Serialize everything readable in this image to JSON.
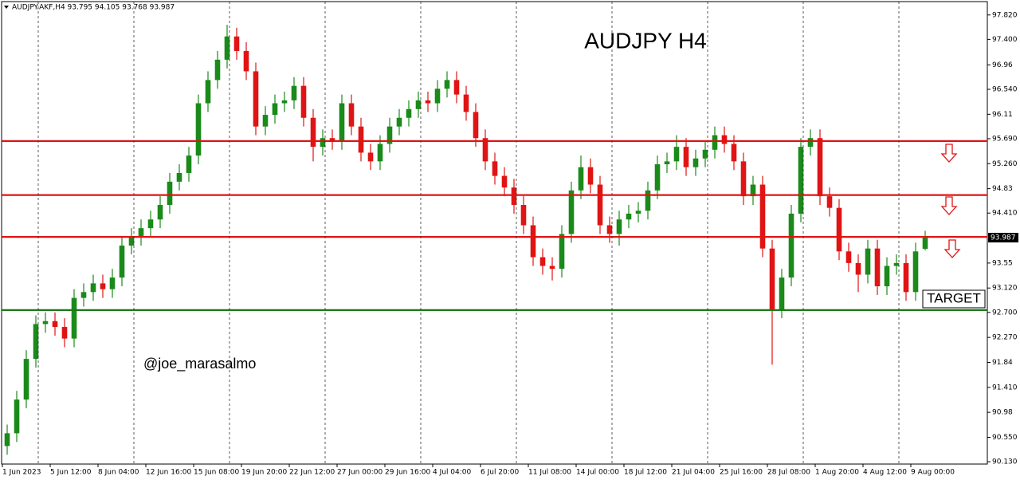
{
  "chart_data": {
    "type": "candlestick",
    "title": "AUDJPY H4",
    "header": "AUDJPY.AKF,H4  93.795 94.105 93.768 93.987",
    "watermark": "@joe_marasalmo",
    "annotation": "TARGET",
    "up_color": "#1a8a1a",
    "down_color": "#e01414",
    "grid": true,
    "ylim": [
      90.09,
      98.05
    ],
    "yticks": [
      {
        "value": 97.82,
        "label": "97.820"
      },
      {
        "value": 97.4,
        "label": "97.400"
      },
      96.96,
      {
        "value": 96.54,
        "label": "96.540"
      },
      96.11,
      {
        "value": 95.69,
        "label": "95.690"
      },
      {
        "value": 95.26,
        "label": "95.260"
      },
      94.83,
      {
        "value": 94.41,
        "label": "94.410"
      },
      93.55,
      {
        "value": 93.12,
        "label": "93.120"
      },
      {
        "value": 92.7,
        "label": "92.700"
      },
      {
        "value": 92.27,
        "label": "92.270"
      },
      91.84,
      {
        "value": 91.41,
        "label": "91.410"
      },
      90.98,
      {
        "value": 90.55,
        "label": "90.550"
      },
      {
        "value": 90.13,
        "label": "90.130"
      }
    ],
    "last_price": 93.987,
    "xlim": [
      0,
      103
    ],
    "xticks": [
      {
        "value": 0,
        "label": "1 Jun 2023"
      },
      {
        "value": 5,
        "label": "5 Jun 12:00"
      },
      {
        "value": 10,
        "label": "8 Jun 04:00"
      },
      {
        "value": 15,
        "label": "12 Jun 16:00"
      },
      {
        "value": 20,
        "label": "15 Jun 08:00"
      },
      {
        "value": 25,
        "label": "19 Jun 20:00"
      },
      {
        "value": 30,
        "label": "22 Jun 12:00"
      },
      {
        "value": 35,
        "label": "27 Jun 00:00"
      },
      {
        "value": 40,
        "label": "29 Jun 16:00"
      },
      {
        "value": 45,
        "label": "4 Jul 04:00"
      },
      {
        "value": 50,
        "label": "6 Jul 20:00"
      },
      {
        "value": 55,
        "label": "11 Jul 08:00"
      },
      {
        "value": 60,
        "label": "14 Jul 00:00"
      },
      {
        "value": 65,
        "label": "18 Jul 12:00"
      },
      {
        "value": 70,
        "label": "21 Jul 04:00"
      },
      {
        "value": 75,
        "label": "25 Jul 16:00"
      },
      {
        "value": 80,
        "label": "28 Jul 08:00"
      },
      {
        "value": 85,
        "label": "1 Aug 20:00"
      },
      {
        "value": 90,
        "label": "4 Aug 12:00"
      },
      {
        "value": 95,
        "label": "9 Aug 00:00"
      }
    ],
    "levels": [
      {
        "value": 95.65,
        "color": "#e01414"
      },
      {
        "value": 94.72,
        "color": "#e01414"
      },
      {
        "value": 94.0,
        "color": "#e01414"
      },
      {
        "value": 92.74,
        "color": "#1a7a1a"
      }
    ],
    "open": [
      90.4,
      90.62,
      91.2,
      91.9,
      92.5,
      92.55,
      92.45,
      92.25,
      92.95,
      93.05,
      93.2,
      93.1,
      93.3,
      93.85,
      94.0,
      94.15,
      94.3,
      94.55,
      94.95,
      95.1,
      95.4,
      96.3,
      96.7,
      97.05,
      97.45,
      97.2,
      96.85,
      95.9,
      96.1,
      96.3,
      96.35,
      96.6,
      96.05,
      95.55,
      95.7,
      95.65,
      96.3,
      95.9,
      95.45,
      95.3,
      95.6,
      95.9,
      96.05,
      96.2,
      96.35,
      96.3,
      96.55,
      96.7,
      96.45,
      96.15,
      95.7,
      95.3,
      95.05,
      94.85,
      94.55,
      94.2,
      93.65,
      93.5,
      93.45,
      94.05,
      94.8,
      95.2,
      94.9,
      94.2,
      94.05,
      94.3,
      94.4,
      94.45,
      94.8,
      95.25,
      95.3,
      95.55,
      95.2,
      95.35,
      95.5,
      95.75,
      95.6,
      95.3,
      94.7,
      94.9,
      93.8,
      92.75,
      93.3,
      94.4,
      95.55,
      95.7,
      94.7,
      94.5,
      93.75,
      93.55,
      93.35,
      93.8,
      93.15,
      93.5,
      93.55,
      93.05,
      93.795
    ],
    "high": [
      90.77,
      91.35,
      92.05,
      92.65,
      92.7,
      92.7,
      92.6,
      93.1,
      93.2,
      93.35,
      93.35,
      93.45,
      94.0,
      94.15,
      94.3,
      94.45,
      94.7,
      95.1,
      95.25,
      95.55,
      96.45,
      96.85,
      97.2,
      97.65,
      97.6,
      97.35,
      97.0,
      96.25,
      96.45,
      96.5,
      96.75,
      96.75,
      96.2,
      95.85,
      95.85,
      96.45,
      96.45,
      96.05,
      95.6,
      95.75,
      96.05,
      96.2,
      96.35,
      96.5,
      96.5,
      96.7,
      96.85,
      96.85,
      96.6,
      96.3,
      95.85,
      95.45,
      95.2,
      95.0,
      94.7,
      94.35,
      93.8,
      93.65,
      94.2,
      94.95,
      95.4,
      95.35,
      95.05,
      94.35,
      94.45,
      94.55,
      94.6,
      94.95,
      95.4,
      95.45,
      95.75,
      95.7,
      95.5,
      95.65,
      95.9,
      95.9,
      95.75,
      95.45,
      95.05,
      95.05,
      93.95,
      93.45,
      94.55,
      95.7,
      95.85,
      95.85,
      94.85,
      94.65,
      93.9,
      93.7,
      93.95,
      93.95,
      93.65,
      93.7,
      93.7,
      93.9,
      94.105
    ],
    "low": [
      90.25,
      90.47,
      91.05,
      91.75,
      92.35,
      92.3,
      92.1,
      92.1,
      92.8,
      92.9,
      92.95,
      92.95,
      93.15,
      93.7,
      93.85,
      94.0,
      94.15,
      94.4,
      94.8,
      94.95,
      95.25,
      96.15,
      96.55,
      96.9,
      97.05,
      96.7,
      95.75,
      95.75,
      95.95,
      96.15,
      96.2,
      95.9,
      95.3,
      95.4,
      95.5,
      95.5,
      95.75,
      95.3,
      95.15,
      95.15,
      95.45,
      95.75,
      95.9,
      96.05,
      96.15,
      96.15,
      96.4,
      96.3,
      96.0,
      95.55,
      95.15,
      94.9,
      94.7,
      94.4,
      94.05,
      93.5,
      93.35,
      93.25,
      93.3,
      93.9,
      94.65,
      94.75,
      94.05,
      93.9,
      93.85,
      94.15,
      94.25,
      94.3,
      94.65,
      95.1,
      95.15,
      95.05,
      95.05,
      95.2,
      95.35,
      95.45,
      95.15,
      94.55,
      94.55,
      93.65,
      91.8,
      92.6,
      93.15,
      94.25,
      95.4,
      94.55,
      94.35,
      93.6,
      93.4,
      93.05,
      93.2,
      93.0,
      93.0,
      93.35,
      92.9,
      92.9,
      93.768
    ],
    "close": [
      90.62,
      91.2,
      91.9,
      92.5,
      92.55,
      92.45,
      92.25,
      92.95,
      93.05,
      93.2,
      93.1,
      93.3,
      93.85,
      94.0,
      94.15,
      94.3,
      94.55,
      94.95,
      95.1,
      95.4,
      96.3,
      96.7,
      97.05,
      97.45,
      97.2,
      96.85,
      95.9,
      96.1,
      96.3,
      96.35,
      96.6,
      96.05,
      95.55,
      95.7,
      95.65,
      96.3,
      95.9,
      95.45,
      95.3,
      95.6,
      95.9,
      96.05,
      96.2,
      96.35,
      96.3,
      96.55,
      96.7,
      96.45,
      96.15,
      95.7,
      95.3,
      95.05,
      94.85,
      94.55,
      94.2,
      93.65,
      93.5,
      93.45,
      94.05,
      94.8,
      95.2,
      94.9,
      94.2,
      94.05,
      94.3,
      94.4,
      94.45,
      94.8,
      95.25,
      95.3,
      95.55,
      95.2,
      95.35,
      95.5,
      95.75,
      95.6,
      95.3,
      94.7,
      94.9,
      93.8,
      92.75,
      93.3,
      94.4,
      95.55,
      95.7,
      94.7,
      94.5,
      93.75,
      93.55,
      93.35,
      93.8,
      93.15,
      93.5,
      93.55,
      93.05,
      93.75,
      93.987
    ]
  }
}
